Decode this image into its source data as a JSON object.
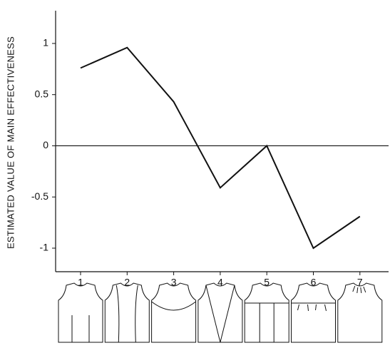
{
  "chart_data": {
    "type": "line",
    "y_label": "ESTIMATED VALUE OF MAIN EFFECTIVENESS",
    "categories": [
      "1",
      "2",
      "3",
      "4",
      "5",
      "6",
      "7"
    ],
    "values": [
      0.76,
      0.96,
      0.43,
      -0.41,
      0,
      -1.0,
      -0.69
    ],
    "color": "#111111",
    "ylim": [
      -1.23,
      1.32
    ],
    "yticks": [
      -1,
      -0.5,
      0,
      0.5,
      1
    ],
    "zero_line": true
  }
}
